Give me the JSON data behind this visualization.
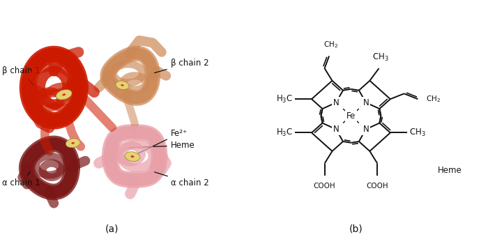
{
  "figure_width": 7.0,
  "figure_height": 3.53,
  "dpi": 100,
  "bg_color": "#ffffff",
  "panel_a_label": "(a)",
  "panel_b_label": "(b)",
  "label_fontsize": 10,
  "annotation_fontsize": 8.5,
  "heme_label": "Heme",
  "labels_left": {
    "beta_chain_1": "β chain 1",
    "alpha_chain_1": "α chain 1"
  },
  "labels_right": {
    "beta_chain_2": "β chain 2",
    "fe2plus": "Fe²⁺",
    "heme": "Heme",
    "alpha_chain_2": "α chain 2"
  },
  "colors": {
    "beta1": "#cc1a00",
    "beta2": "#cc8855",
    "alpha1": "#7a1515",
    "alpha2": "#e8a0a8",
    "heme_disk": "#e8d070",
    "heme_center": "#cc3333",
    "line_color": "#111111"
  }
}
